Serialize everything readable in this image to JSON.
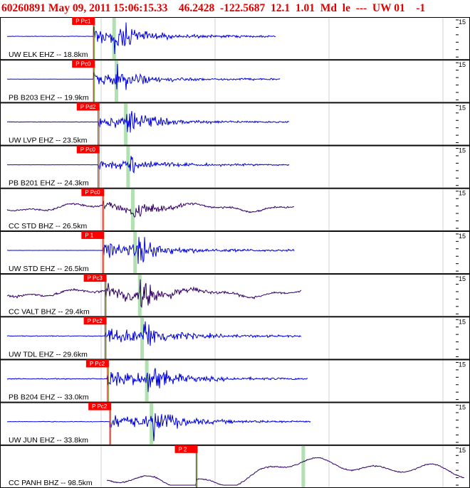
{
  "header": {
    "text": "60260891 May 09, 2011 15:06:15.33    46.2428  -122.5687  12.1  1.01  Md  le  ---  UW 01    -1"
  },
  "chart_data": {
    "type": "line",
    "title": "60260891 May 09, 2011 15:06:15.33    46.2428  -122.5687  12.1  1.01  Md  le  ---  UW 01    -1",
    "grid": true,
    "tick_label": "15",
    "series": [
      {
        "label": "UW ELK EHZ -- 18.8km",
        "pick": "P Pc1",
        "p_time": 0.2,
        "s_time": 0.245,
        "end": 0.59,
        "color": "#0000dd",
        "noise": 0.03,
        "amp": 1.0,
        "broadband": false
      },
      {
        "label": "PB B203 EHZ -- 19.9km",
        "pick": "P Pc0",
        "p_time": 0.2,
        "s_time": 0.25,
        "end": 0.6,
        "color": "#0000dd",
        "noise": 0.02,
        "amp": 0.8,
        "broadband": false
      },
      {
        "label": "UW LVP EHZ -- 23.5km",
        "pick": "P Pd2",
        "p_time": 0.21,
        "s_time": 0.27,
        "end": 0.62,
        "color": "#0000dd",
        "noise": 0.03,
        "amp": 0.85,
        "broadband": false
      },
      {
        "label": "PB B201 EHZ -- 24.3km",
        "pick": "P Pc0",
        "p_time": 0.21,
        "s_time": 0.275,
        "end": 0.62,
        "color": "#0000dd",
        "noise": 0.01,
        "amp": 0.6,
        "broadband": false
      },
      {
        "label": "CC STD BHZ -- 26.5km",
        "pick": "P Pc0",
        "p_time": 0.22,
        "s_time": 0.285,
        "end": 0.63,
        "color": "#330066",
        "noise": 0.12,
        "amp": 0.55,
        "broadband": true
      },
      {
        "label": "UW STD EHZ -- 26.5km",
        "pick": "P 1",
        "p_time": 0.22,
        "s_time": 0.29,
        "end": 0.63,
        "color": "#0000dd",
        "noise": 0.01,
        "amp": 1.0,
        "broadband": false
      },
      {
        "label": "CC VALT BHZ -- 29.4km",
        "pick": "P Pc3",
        "p_time": 0.225,
        "s_time": 0.3,
        "end": 0.645,
        "color": "#330066",
        "noise": 0.18,
        "amp": 0.9,
        "broadband": true
      },
      {
        "label": "UW TDL EHZ -- 29.6km",
        "pick": "P Pc2",
        "p_time": 0.225,
        "s_time": 0.305,
        "end": 0.645,
        "color": "#0000dd",
        "noise": 0.05,
        "amp": 1.0,
        "broadband": false
      },
      {
        "label": "PB B204 EHZ -- 33.0km",
        "pick": "P Pc2",
        "p_time": 0.23,
        "s_time": 0.315,
        "end": 0.66,
        "color": "#0000dd",
        "noise": 0.06,
        "amp": 1.0,
        "broadband": false
      },
      {
        "label": "UW JUN EHZ -- 33.8km",
        "pick": "P Pc2",
        "p_time": 0.235,
        "s_time": 0.325,
        "end": 0.665,
        "color": "#0000dd",
        "noise": 0.05,
        "amp": 0.95,
        "broadband": false
      },
      {
        "label": "CC PANH BHZ -- 98.5km",
        "pick": "P 2",
        "p_time": 0.42,
        "s_time": 0.65,
        "end": 1.0,
        "color": "#330066",
        "noise": 0.0,
        "amp": 0.0,
        "broadband": true,
        "longperiod": true
      }
    ]
  }
}
